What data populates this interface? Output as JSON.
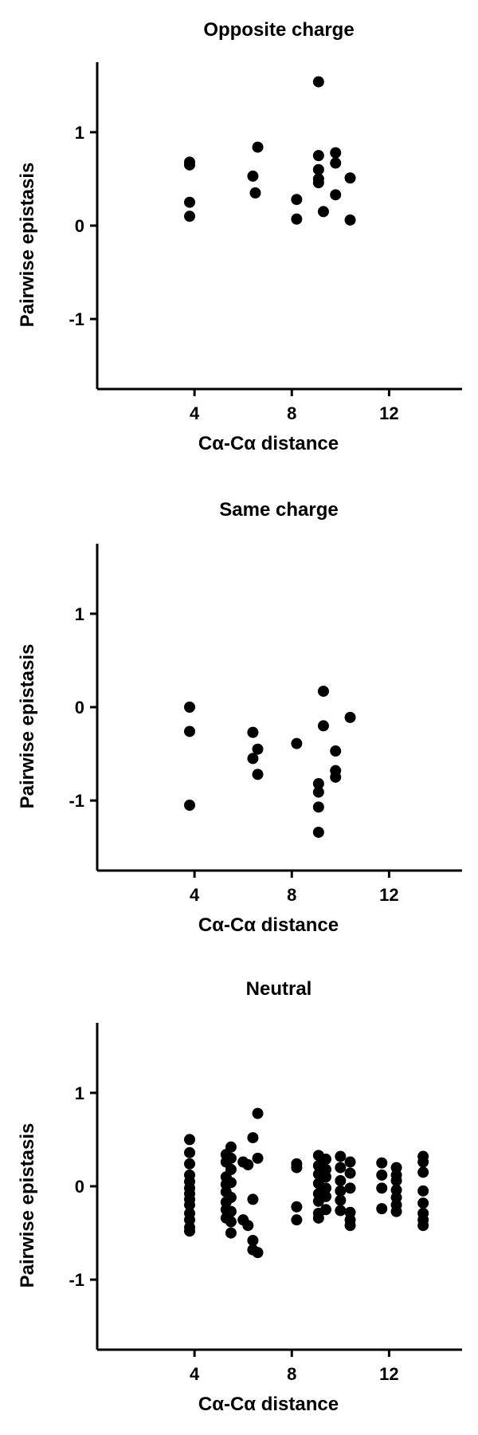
{
  "chart_data": [
    {
      "type": "scatter",
      "title": "Opposite charge",
      "xlabel": "Cα-Cα distance",
      "ylabel": "Pairwise epistasis",
      "xlim": [
        0,
        15
      ],
      "ylim": [
        -1.75,
        1.75
      ],
      "xticks": [
        4,
        8,
        12
      ],
      "xtick_labels": [
        "4",
        "8",
        "12"
      ],
      "yticks": [
        1,
        0,
        -1
      ],
      "ytick_labels": [
        "1",
        "0",
        "-1"
      ],
      "grid": false,
      "legend": "none",
      "color": "#000000",
      "series": [
        {
          "points": [
            [
              3.8,
              0.68
            ],
            [
              3.8,
              0.65
            ],
            [
              3.8,
              0.25
            ],
            [
              3.8,
              0.1
            ],
            [
              6.4,
              0.53
            ],
            [
              6.5,
              0.35
            ],
            [
              6.6,
              0.84
            ],
            [
              8.2,
              0.28
            ],
            [
              8.2,
              0.07
            ],
            [
              9.1,
              1.54
            ],
            [
              9.1,
              0.75
            ],
            [
              9.1,
              0.6
            ],
            [
              9.1,
              0.5
            ],
            [
              9.1,
              0.46
            ],
            [
              9.3,
              0.15
            ],
            [
              9.8,
              0.78
            ],
            [
              9.8,
              0.67
            ],
            [
              9.8,
              0.33
            ],
            [
              10.4,
              0.51
            ],
            [
              10.4,
              0.06
            ]
          ]
        }
      ]
    },
    {
      "type": "scatter",
      "title": "Same charge",
      "xlabel": "Cα-Cα distance",
      "ylabel": "Pairwise epistasis",
      "xlim": [
        0,
        15
      ],
      "ylim": [
        -1.75,
        1.75
      ],
      "xticks": [
        4,
        8,
        12
      ],
      "xtick_labels": [
        "4",
        "8",
        "12"
      ],
      "yticks": [
        1,
        0,
        -1
      ],
      "ytick_labels": [
        "1",
        "0",
        "-1"
      ],
      "grid": false,
      "legend": "none",
      "color": "#000000",
      "series": [
        {
          "points": [
            [
              3.8,
              0.0
            ],
            [
              3.8,
              -0.26
            ],
            [
              3.8,
              -1.05
            ],
            [
              6.4,
              -0.27
            ],
            [
              6.4,
              -0.55
            ],
            [
              6.6,
              -0.45
            ],
            [
              6.6,
              -0.72
            ],
            [
              8.2,
              -0.39
            ],
            [
              9.1,
              -0.82
            ],
            [
              9.1,
              -0.91
            ],
            [
              9.1,
              -1.07
            ],
            [
              9.1,
              -1.34
            ],
            [
              9.3,
              0.17
            ],
            [
              9.3,
              -0.2
            ],
            [
              9.8,
              -0.47
            ],
            [
              9.8,
              -0.68
            ],
            [
              9.8,
              -0.75
            ],
            [
              10.4,
              -0.11
            ]
          ]
        }
      ]
    },
    {
      "type": "scatter",
      "title": "Neutral",
      "xlabel": "Cα-Cα distance",
      "ylabel": "Pairwise epistasis",
      "xlim": [
        0,
        15
      ],
      "ylim": [
        -1.75,
        1.75
      ],
      "xticks": [
        4,
        8,
        12
      ],
      "xtick_labels": [
        "4",
        "8",
        "12"
      ],
      "yticks": [
        1,
        0,
        -1
      ],
      "ytick_labels": [
        "1",
        "0",
        "-1"
      ],
      "grid": false,
      "legend": "none",
      "color": "#000000",
      "series": [
        {
          "points": [
            [
              3.8,
              0.5
            ],
            [
              3.8,
              0.36
            ],
            [
              3.8,
              0.24
            ],
            [
              3.8,
              0.12
            ],
            [
              3.8,
              0.05
            ],
            [
              3.8,
              -0.02
            ],
            [
              3.8,
              -0.08
            ],
            [
              3.8,
              -0.14
            ],
            [
              3.8,
              -0.2
            ],
            [
              3.8,
              -0.29
            ],
            [
              3.8,
              -0.36
            ],
            [
              3.8,
              -0.44
            ],
            [
              3.8,
              -0.48
            ],
            [
              5.3,
              0.34
            ],
            [
              5.3,
              0.26
            ],
            [
              5.3,
              0.1
            ],
            [
              5.3,
              0.02
            ],
            [
              5.3,
              -0.06
            ],
            [
              5.3,
              -0.17
            ],
            [
              5.3,
              -0.25
            ],
            [
              5.3,
              -0.34
            ],
            [
              5.5,
              0.42
            ],
            [
              5.5,
              0.3
            ],
            [
              5.5,
              0.18
            ],
            [
              5.5,
              0.04
            ],
            [
              5.5,
              -0.12
            ],
            [
              5.5,
              -0.27
            ],
            [
              5.5,
              -0.38
            ],
            [
              5.5,
              -0.5
            ],
            [
              6.0,
              0.26
            ],
            [
              6.0,
              -0.36
            ],
            [
              6.2,
              -0.42
            ],
            [
              6.2,
              0.23
            ],
            [
              6.4,
              0.52
            ],
            [
              6.4,
              -0.14
            ],
            [
              6.4,
              -0.58
            ],
            [
              6.4,
              -0.68
            ],
            [
              6.6,
              0.78
            ],
            [
              6.6,
              0.3
            ],
            [
              6.6,
              -0.71
            ],
            [
              8.2,
              0.24
            ],
            [
              8.2,
              0.2
            ],
            [
              8.2,
              -0.22
            ],
            [
              8.2,
              -0.36
            ],
            [
              9.1,
              0.33
            ],
            [
              9.1,
              0.22
            ],
            [
              9.1,
              0.13
            ],
            [
              9.1,
              0.03
            ],
            [
              9.1,
              -0.08
            ],
            [
              9.1,
              -0.16
            ],
            [
              9.1,
              -0.29
            ],
            [
              9.1,
              -0.34
            ],
            [
              9.4,
              0.29
            ],
            [
              9.4,
              0.18
            ],
            [
              9.4,
              0.1
            ],
            [
              9.4,
              -0.02
            ],
            [
              9.4,
              -0.11
            ],
            [
              9.4,
              -0.25
            ],
            [
              10.0,
              0.32
            ],
            [
              10.0,
              0.2
            ],
            [
              10.0,
              0.06
            ],
            [
              10.0,
              -0.05
            ],
            [
              10.0,
              -0.15
            ],
            [
              10.0,
              -0.26
            ],
            [
              10.4,
              0.26
            ],
            [
              10.4,
              0.14
            ],
            [
              10.4,
              -0.02
            ],
            [
              10.4,
              -0.28
            ],
            [
              10.4,
              -0.36
            ],
            [
              10.4,
              -0.42
            ],
            [
              11.7,
              0.25
            ],
            [
              11.7,
              0.12
            ],
            [
              11.7,
              -0.02
            ],
            [
              11.7,
              -0.24
            ],
            [
              12.3,
              0.2
            ],
            [
              12.3,
              0.12
            ],
            [
              12.3,
              0.06
            ],
            [
              12.3,
              -0.04
            ],
            [
              12.3,
              -0.12
            ],
            [
              12.3,
              -0.2
            ],
            [
              12.3,
              -0.27
            ],
            [
              13.4,
              0.32
            ],
            [
              13.4,
              0.26
            ],
            [
              13.4,
              0.15
            ],
            [
              13.4,
              -0.05
            ],
            [
              13.4,
              -0.18
            ],
            [
              13.4,
              -0.29
            ],
            [
              13.4,
              -0.36
            ],
            [
              13.4,
              -0.42
            ]
          ]
        }
      ]
    }
  ]
}
